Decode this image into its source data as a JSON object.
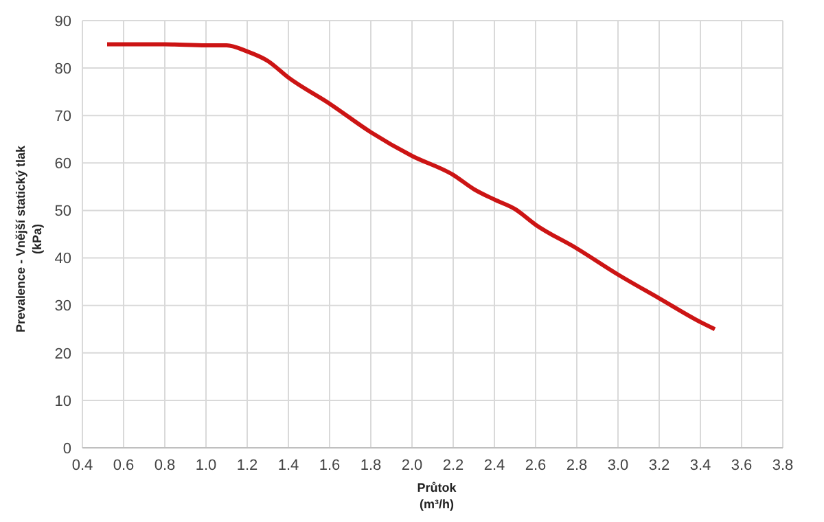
{
  "chart_data": {
    "type": "line",
    "xlabel": "Průtok\n(m³/h)",
    "ylabel": "Prevalence - Vnější statický tlak\n(kPa)",
    "x": [
      0.52,
      0.6,
      0.8,
      1.0,
      1.1,
      1.2,
      1.3,
      1.4,
      1.6,
      1.8,
      2.0,
      2.2,
      2.3,
      2.4,
      2.5,
      2.6,
      2.8,
      3.0,
      3.2,
      3.4,
      3.47
    ],
    "series": [
      {
        "color": "#cc1414",
        "values": [
          85,
          85,
          85,
          84.8,
          84.8,
          83.5,
          81.5,
          78,
          72.5,
          66.5,
          61.5,
          57.5,
          54.5,
          52.3,
          50.3,
          47,
          42,
          36.5,
          31.5,
          26.5,
          25
        ]
      }
    ],
    "xlim": [
      0.4,
      3.8
    ],
    "xticks": [
      {
        "value": 0.4,
        "label": "0.4"
      },
      {
        "value": 0.6,
        "label": "0.6"
      },
      {
        "value": 0.8,
        "label": "0.8"
      },
      {
        "value": 1.0,
        "label": "1.0"
      },
      {
        "value": 1.2,
        "label": "1.2"
      },
      {
        "value": 1.4,
        "label": "1.4"
      },
      {
        "value": 1.6,
        "label": "1.6"
      },
      {
        "value": 1.8,
        "label": "1.8"
      },
      {
        "value": 2.0,
        "label": "2.0"
      },
      {
        "value": 2.2,
        "label": "2.2"
      },
      {
        "value": 2.4,
        "label": "2.4"
      },
      {
        "value": 2.6,
        "label": "2.6"
      },
      {
        "value": 2.8,
        "label": "2.8"
      },
      {
        "value": 3.0,
        "label": "3.0"
      },
      {
        "value": 3.2,
        "label": "3.2"
      },
      {
        "value": 3.4,
        "label": "3.4"
      },
      {
        "value": 3.6,
        "label": "3.6"
      },
      {
        "value": 3.8,
        "label": "3.8"
      }
    ],
    "ylim": [
      0,
      90
    ],
    "yticks": [
      0,
      10,
      20,
      30,
      40,
      50,
      60,
      70,
      80,
      90
    ],
    "grid": true,
    "legend": false,
    "marker": "none",
    "line_style": "solid"
  }
}
